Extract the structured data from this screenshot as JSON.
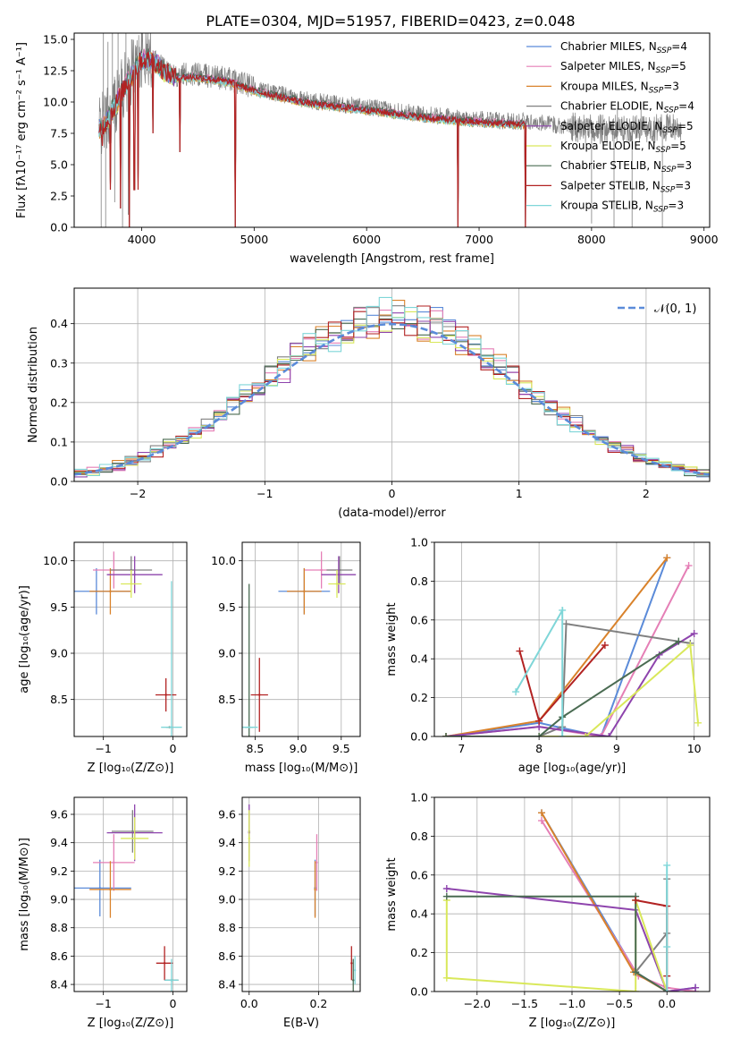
{
  "figure": {
    "title": "PLATE=0304, MJD=51957, FIBERID=0423, z=0.048"
  },
  "colors": {
    "chabrier_miles": "#5b8bd9",
    "salpeter_miles": "#e57fb6",
    "kroupa_miles": "#d9822b",
    "chabrier_elodie": "#808080",
    "salpeter_elodie": "#8e44ad",
    "kroupa_elodie": "#d9e85a",
    "chabrier_stelib": "#4a6b52",
    "salpeter_stelib": "#b22222",
    "kroupa_stelib": "#7fd6d8",
    "grid": "#b0b0b0",
    "normal_curve": "#5b8bd9"
  },
  "chart_data": [
    {
      "id": "spectrum",
      "type": "line",
      "xlabel": "wavelength [Angstrom, rest frame]",
      "ylabel": "Flux [fλ10⁻¹⁷ erg cm⁻² s⁻¹ A⁻¹]",
      "xlim": [
        3400,
        9050
      ],
      "ylim": [
        0,
        15.5
      ],
      "xticks": [
        "4000",
        "5000",
        "6000",
        "7000",
        "8000",
        "9000"
      ],
      "yticks": [
        "0.0",
        "2.5",
        "5.0",
        "7.5",
        "10.0",
        "12.5",
        "15.0"
      ],
      "grid": false,
      "legend_position": "upper-right",
      "legend": [
        {
          "label": "Chabrier MILES, N",
          "sub": "SSP",
          "suffix": "=4",
          "color_key": "chabrier_miles"
        },
        {
          "label": "Salpeter MILES, N",
          "sub": "SSP",
          "suffix": "=5",
          "color_key": "salpeter_miles"
        },
        {
          "label": "Kroupa MILES, N",
          "sub": "SSP",
          "suffix": "=3",
          "color_key": "kroupa_miles"
        },
        {
          "label": "Chabrier ELODIE, N",
          "sub": "SSP",
          "suffix": "=4",
          "color_key": "chabrier_elodie"
        },
        {
          "label": "Salpeter ELODIE, N",
          "sub": "SSP",
          "suffix": "=5",
          "color_key": "salpeter_elodie"
        },
        {
          "label": "Kroupa ELODIE, N",
          "sub": "SSP",
          "suffix": "=5",
          "color_key": "kroupa_elodie"
        },
        {
          "label": "Chabrier STELIB, N",
          "sub": "SSP",
          "suffix": "=3",
          "color_key": "chabrier_stelib"
        },
        {
          "label": "Salpeter STELIB, N",
          "sub": "SSP",
          "suffix": "=3",
          "color_key": "salpeter_stelib"
        },
        {
          "label": "Kroupa STELIB, N",
          "sub": "SSP",
          "suffix": "=3",
          "color_key": "kroupa_stelib"
        }
      ],
      "continuum": [
        [
          3650,
          8.2
        ],
        [
          3700,
          8.8
        ],
        [
          3800,
          10.6
        ],
        [
          3900,
          12.2
        ],
        [
          4000,
          13.6
        ],
        [
          4100,
          13.6
        ],
        [
          4200,
          12.7
        ],
        [
          4300,
          12.2
        ],
        [
          4500,
          12.2
        ],
        [
          4800,
          11.8
        ],
        [
          5000,
          11.1
        ],
        [
          5500,
          10.1
        ],
        [
          6000,
          9.6
        ],
        [
          6500,
          9.0
        ],
        [
          7000,
          8.6
        ],
        [
          7500,
          8.4
        ],
        [
          8000,
          7.8
        ],
        [
          8500,
          7.9
        ],
        [
          8800,
          8.0
        ]
      ],
      "data_range": [
        3620,
        8800
      ],
      "model_range": [
        3620,
        7420
      ],
      "absorption_dips": [
        [
          3650,
          6.5
        ],
        [
          3720,
          3.0
        ],
        [
          3810,
          1.5
        ],
        [
          3890,
          0.0
        ],
        [
          3935,
          3.0
        ],
        [
          3970,
          3.0
        ],
        [
          4102,
          7.5
        ],
        [
          4340,
          6.0
        ],
        [
          4830,
          0.0
        ],
        [
          6570,
          8.5
        ],
        [
          6810,
          0.0
        ],
        [
          7410,
          0.0
        ]
      ],
      "noise_spikes": [
        [
          3640,
          0.0
        ],
        [
          3660,
          15.5
        ],
        [
          3680,
          0.0
        ],
        [
          3700,
          14.8
        ],
        [
          3740,
          15.5
        ],
        [
          3760,
          2.0
        ],
        [
          3790,
          15.5
        ],
        [
          3830,
          0.0
        ],
        [
          3860,
          15.5
        ],
        [
          3880,
          1.0
        ],
        [
          3910,
          15.0
        ],
        [
          3960,
          14.5
        ],
        [
          8000,
          0.3
        ],
        [
          8200,
          0.0
        ],
        [
          8230,
          9.5
        ],
        [
          8360,
          0.0
        ],
        [
          8440,
          10.0
        ],
        [
          8630,
          0.0
        ]
      ]
    },
    {
      "id": "residual-histogram",
      "type": "bar",
      "xlabel": "(data-model)/error",
      "ylabel": "Normed distribution",
      "xlim": [
        -2.5,
        2.5
      ],
      "ylim": [
        0,
        0.49
      ],
      "xticks": [
        "−2",
        "−1",
        "0",
        "1",
        "2"
      ],
      "yticks": [
        "0.0",
        "0.1",
        "0.2",
        "0.3",
        "0.4"
      ],
      "grid": true,
      "legend_position": "upper-right",
      "legend_label": "𝒩(0, 1)",
      "bin_width": 0.1
    },
    {
      "id": "age-vs-metallicity",
      "type": "scatter",
      "xlabel": "Z [log₁₀(Z/Z⊙)]",
      "ylabel": "age  [log₁₀(age/yr)]",
      "xlim": [
        -1.42,
        0.2
      ],
      "ylim": [
        8.1,
        10.2
      ],
      "xticks": [
        "−1",
        "0"
      ],
      "yticks": [
        "8.5",
        "9.0",
        "9.5",
        "10.0"
      ],
      "grid": true,
      "points": [
        {
          "series": "chabrier_miles",
          "x": -1.1,
          "y": 9.67,
          "xerr": 0.5,
          "yerr": 0.25
        },
        {
          "series": "salpeter_miles",
          "x": -0.85,
          "y": 9.9,
          "xerr": 0.3,
          "yerr": 0.2
        },
        {
          "series": "kroupa_miles",
          "x": -0.9,
          "y": 9.67,
          "xerr": 0.3,
          "yerr": 0.25
        },
        {
          "series": "chabrier_elodie",
          "x": -0.6,
          "y": 9.9,
          "xerr": 0.3,
          "yerr": 0.15
        },
        {
          "series": "salpeter_elodie",
          "x": -0.55,
          "y": 9.85,
          "xerr": 0.4,
          "yerr": 0.2
        },
        {
          "series": "kroupa_elodie",
          "x": -0.6,
          "y": 9.75,
          "xerr": 0.15,
          "yerr": 0.15
        },
        {
          "series": "chabrier_stelib",
          "x": -0.05,
          "y": 8.2,
          "xerr": 0.05,
          "yerr": 0.0
        },
        {
          "series": "salpeter_stelib",
          "x": -0.1,
          "y": 8.55,
          "xerr": 0.15,
          "yerr": 0.18
        },
        {
          "series": "kroupa_stelib",
          "x": -0.02,
          "y": 8.2,
          "xerr": 0.15,
          "yerr": 1.58
        }
      ]
    },
    {
      "id": "age-vs-mass",
      "type": "scatter",
      "xlabel": "mass [log₁₀(M/M⊙)]",
      "ylabel": "",
      "xlim": [
        8.35,
        9.72
      ],
      "ylim": [
        8.1,
        10.2
      ],
      "xticks": [
        "8.5",
        "9.0",
        "9.5"
      ],
      "yticks": [
        "8.5",
        "9.0",
        "9.5",
        "10.0"
      ],
      "grid": true,
      "points": [
        {
          "series": "chabrier_miles",
          "x": 9.07,
          "y": 9.67,
          "xerr": 0.3,
          "yerr": 0.25
        },
        {
          "series": "salpeter_miles",
          "x": 9.27,
          "y": 9.9,
          "xerr": 0.2,
          "yerr": 0.2
        },
        {
          "series": "kroupa_miles",
          "x": 9.07,
          "y": 9.67,
          "xerr": 0.2,
          "yerr": 0.25
        },
        {
          "series": "chabrier_elodie",
          "x": 9.48,
          "y": 9.9,
          "xerr": 0.15,
          "yerr": 0.15
        },
        {
          "series": "salpeter_elodie",
          "x": 9.47,
          "y": 9.85,
          "xerr": 0.2,
          "yerr": 0.2
        },
        {
          "series": "kroupa_elodie",
          "x": 9.45,
          "y": 9.75,
          "xerr": 0.1,
          "yerr": 0.15
        },
        {
          "series": "chabrier_stelib",
          "x": 8.43,
          "y": 8.2,
          "xerr": 0.05,
          "yerr": 1.55
        },
        {
          "series": "salpeter_stelib",
          "x": 8.55,
          "y": 8.55,
          "xerr": 0.1,
          "yerr": 0.4
        },
        {
          "series": "kroupa_stelib",
          "x": 8.43,
          "y": 8.2,
          "xerr": 0.1,
          "yerr": 0.0
        }
      ]
    },
    {
      "id": "mass-weight-vs-age",
      "type": "line",
      "xlabel": "age  [log₁₀(age/yr)]",
      "ylabel": "mass weight",
      "xlim": [
        6.65,
        10.2
      ],
      "ylim": [
        0,
        1
      ],
      "xticks": [
        "7",
        "8",
        "9",
        "10"
      ],
      "yticks": [
        "0.0",
        "0.2",
        "0.4",
        "0.6",
        "0.8",
        "1.0"
      ],
      "grid": true,
      "series": [
        {
          "name": "chabrier_miles",
          "x": [
            6.8,
            8.0,
            8.8,
            9.65
          ],
          "y": [
            0.0,
            0.07,
            0.0,
            0.92
          ]
        },
        {
          "name": "salpeter_miles",
          "x": [
            6.8,
            8.0,
            8.8,
            9.93
          ],
          "y": [
            0.0,
            0.05,
            0.0,
            0.88
          ]
        },
        {
          "name": "kroupa_miles",
          "x": [
            6.8,
            8.0,
            9.65
          ],
          "y": [
            0.0,
            0.08,
            0.92
          ]
        },
        {
          "name": "chabrier_elodie",
          "x": [
            6.8,
            8.0,
            8.3,
            8.35,
            9.95
          ],
          "y": [
            0.0,
            0.0,
            0.05,
            0.58,
            0.48
          ]
        },
        {
          "name": "salpeter_elodie",
          "x": [
            6.8,
            8.0,
            8.9,
            9.55,
            10.0
          ],
          "y": [
            0.0,
            0.05,
            0.0,
            0.42,
            0.53
          ]
        },
        {
          "name": "kroupa_elodie",
          "x": [
            6.8,
            8.0,
            8.6,
            9.95,
            10.05
          ],
          "y": [
            0.0,
            0.0,
            0.0,
            0.47,
            0.07
          ]
        },
        {
          "name": "chabrier_stelib",
          "x": [
            6.8,
            8.0,
            8.3,
            9.8
          ],
          "y": [
            0.0,
            0.0,
            0.1,
            0.49
          ]
        },
        {
          "name": "salpeter_stelib",
          "x": [
            7.75,
            8.0,
            8.85
          ],
          "y": [
            0.44,
            0.08,
            0.47
          ]
        },
        {
          "name": "kroupa_stelib",
          "x": [
            7.7,
            8.3,
            8.3
          ],
          "y": [
            0.23,
            0.65,
            0.0
          ]
        }
      ]
    },
    {
      "id": "mass-vs-metallicity",
      "type": "scatter",
      "xlabel": "Z [log₁₀(Z/Z⊙)]",
      "ylabel": "mass [log₁₀(M/M⊙)]",
      "xlim": [
        -1.42,
        0.2
      ],
      "ylim": [
        8.35,
        9.72
      ],
      "xticks": [
        "−1",
        "0"
      ],
      "yticks": [
        "8.4",
        "8.6",
        "8.8",
        "9.0",
        "9.2",
        "9.4",
        "9.6"
      ],
      "grid": true,
      "points": [
        {
          "series": "chabrier_miles",
          "x": -1.05,
          "y": 9.08,
          "xerr": 0.45,
          "yerr": 0.2
        },
        {
          "series": "salpeter_miles",
          "x": -0.85,
          "y": 9.26,
          "xerr": 0.3,
          "yerr": 0.2
        },
        {
          "series": "kroupa_miles",
          "x": -0.9,
          "y": 9.07,
          "xerr": 0.3,
          "yerr": 0.2
        },
        {
          "series": "chabrier_elodie",
          "x": -0.58,
          "y": 9.48,
          "xerr": 0.3,
          "yerr": 0.15
        },
        {
          "series": "salpeter_elodie",
          "x": -0.55,
          "y": 9.47,
          "xerr": 0.4,
          "yerr": 0.2
        },
        {
          "series": "kroupa_elodie",
          "x": -0.55,
          "y": 9.43,
          "xerr": 0.2,
          "yerr": 0.15
        },
        {
          "series": "chabrier_stelib",
          "x": -0.02,
          "y": 8.43,
          "xerr": 0.1,
          "yerr": 0.0
        },
        {
          "series": "salpeter_stelib",
          "x": -0.12,
          "y": 8.55,
          "xerr": 0.12,
          "yerr": 0.12
        },
        {
          "series": "kroupa_stelib",
          "x": -0.02,
          "y": 8.43,
          "xerr": 0.1,
          "yerr": 0.15
        }
      ]
    },
    {
      "id": "mass-vs-extinction",
      "type": "scatter",
      "xlabel": "E(B-V)",
      "ylabel": "",
      "xlim": [
        -0.02,
        0.32
      ],
      "ylim": [
        8.35,
        9.72
      ],
      "xticks": [
        "0.0",
        "0.2"
      ],
      "yticks": [
        "8.4",
        "8.6",
        "8.8",
        "9.0",
        "9.2",
        "9.4",
        "9.6"
      ],
      "grid": true,
      "points": [
        {
          "series": "chabrier_miles",
          "x": 0.19,
          "y": 9.08,
          "xerr": 0.0,
          "yerr": 0.2
        },
        {
          "series": "salpeter_miles",
          "x": 0.195,
          "y": 9.26,
          "xerr": 0.0,
          "yerr": 0.2
        },
        {
          "series": "kroupa_miles",
          "x": 0.19,
          "y": 9.07,
          "xerr": 0.0,
          "yerr": 0.2
        },
        {
          "series": "chabrier_elodie",
          "x": 0.0,
          "y": 9.48,
          "xerr": 0.0,
          "yerr": 0.15
        },
        {
          "series": "salpeter_elodie",
          "x": 0.0,
          "y": 9.47,
          "xerr": 0.0,
          "yerr": 0.2
        },
        {
          "series": "kroupa_elodie",
          "x": 0.0,
          "y": 9.43,
          "xerr": 0.0,
          "yerr": 0.2
        },
        {
          "series": "chabrier_stelib",
          "x": 0.3,
          "y": 8.43,
          "xerr": 0.0,
          "yerr": 0.15
        },
        {
          "series": "salpeter_stelib",
          "x": 0.295,
          "y": 8.55,
          "xerr": 0.0,
          "yerr": 0.12
        },
        {
          "series": "kroupa_stelib",
          "x": 0.305,
          "y": 8.5,
          "xerr": 0.0,
          "yerr": 0.1
        }
      ]
    },
    {
      "id": "mass-weight-vs-metallicity",
      "type": "line",
      "xlabel": "Z [log₁₀(Z/Z⊙)]",
      "ylabel": "mass weight",
      "xlim": [
        -2.45,
        0.45
      ],
      "ylim": [
        0,
        1
      ],
      "xticks": [
        "−2.0",
        "−1.5",
        "−1.0",
        "−0.5",
        "0.0"
      ],
      "yticks": [
        "0.0",
        "0.2",
        "0.4",
        "0.6",
        "0.8",
        "1.0"
      ],
      "grid": true,
      "series": [
        {
          "name": "chabrier_miles",
          "x": [
            -1.32,
            -0.33,
            0.0,
            0.3
          ],
          "y": [
            0.92,
            0.1,
            0.0,
            0.02
          ]
        },
        {
          "name": "salpeter_miles",
          "x": [
            -1.32,
            -0.3,
            0.0,
            0.3
          ],
          "y": [
            0.88,
            0.08,
            0.02,
            0.0
          ]
        },
        {
          "name": "kroupa_miles",
          "x": [
            -1.32,
            -0.35,
            0.0
          ],
          "y": [
            0.92,
            0.1,
            0.0
          ]
        },
        {
          "name": "chabrier_elodie",
          "x": [
            -0.33,
            0.0,
            0.0
          ],
          "y": [
            0.1,
            0.3,
            0.58
          ]
        },
        {
          "name": "salpeter_elodie",
          "x": [
            -2.32,
            -0.33,
            0.0,
            0.3
          ],
          "y": [
            0.53,
            0.42,
            0.0,
            0.02
          ]
        },
        {
          "name": "kroupa_elodie",
          "x": [
            -2.32,
            -2.32,
            -0.33,
            -0.33,
            0.0
          ],
          "y": [
            0.47,
            0.07,
            0.0,
            0.47,
            0.0
          ]
        },
        {
          "name": "chabrier_stelib",
          "x": [
            -2.32,
            -0.33,
            -0.33,
            0.0
          ],
          "y": [
            0.49,
            0.49,
            0.1,
            0.0
          ]
        },
        {
          "name": "salpeter_stelib",
          "x": [
            -0.33,
            0.0,
            0.0,
            0.0
          ],
          "y": [
            0.47,
            0.44,
            0.08,
            0.0
          ]
        },
        {
          "name": "kroupa_stelib",
          "x": [
            0.0,
            0.0,
            0.0
          ],
          "y": [
            0.65,
            0.23,
            0.0
          ]
        }
      ]
    }
  ]
}
